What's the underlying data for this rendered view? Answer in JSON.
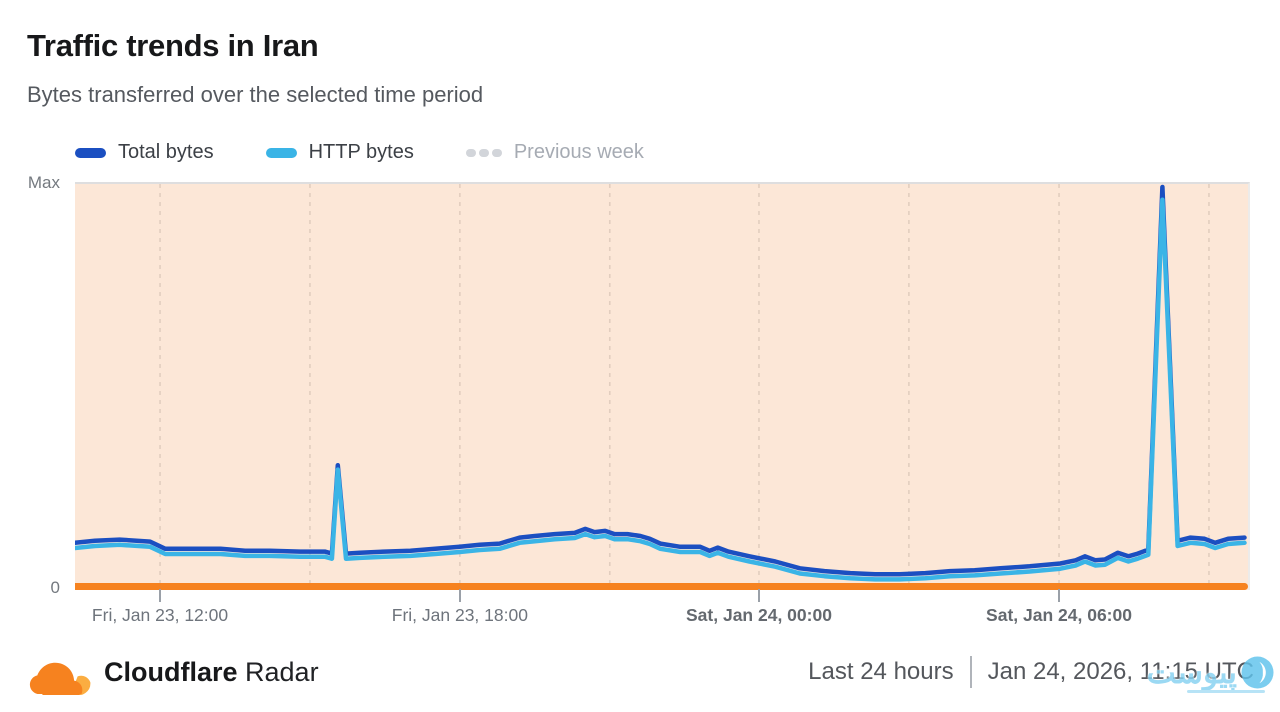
{
  "header": {
    "title": "Traffic trends in Iran",
    "subtitle": "Bytes transferred over the selected time period"
  },
  "legend": [
    {
      "label": "Total bytes",
      "color": "#1b4fc1",
      "style": "solid-pill",
      "active": true
    },
    {
      "label": "HTTP bytes",
      "color": "#3ab4e6",
      "style": "solid-pill",
      "active": true
    },
    {
      "label": "Previous week",
      "color": "#d2d5da",
      "style": "dashed-pill",
      "active": false
    }
  ],
  "chart_data": {
    "type": "line",
    "title": "Traffic trends in Iran",
    "subtitle": "Bytes transferred over the selected time period",
    "y_axis": {
      "top_label": "Max",
      "bottom_label": "0",
      "unit": "% of max",
      "range": [
        0,
        100
      ],
      "numeric_scale_hidden": true
    },
    "x_unit": "fraction of 24h window (0 ≈ Fri Jan 23 ~11:15 UTC, 1 ≈ Sat Jan 24 ~11:15 UTC)",
    "x_ticks": [
      {
        "x": 0.0725,
        "label": "Fri, Jan 23, 12:00",
        "bold": false
      },
      {
        "x": 0.3281,
        "label": "Fri, Jan 23, 18:00",
        "bold": false
      },
      {
        "x": 0.5831,
        "label": "Sat, Jan 24, 00:00",
        "bold": true
      },
      {
        "x": 0.8389,
        "label": "Sat, Jan 24, 06:00",
        "bold": true
      }
    ],
    "gridlines_x": [
      0.0725,
      0.2003,
      0.3281,
      0.4559,
      0.5831,
      0.7109,
      0.8389,
      0.9667
    ],
    "grid_on": true,
    "legend_position": "top-left",
    "plot_bg": "#fce7d7",
    "baseline_color": "#f6821f",
    "grid_color": "#e2cebf",
    "x": [
      0.0,
      0.017,
      0.038,
      0.064,
      0.077,
      0.098,
      0.124,
      0.145,
      0.166,
      0.192,
      0.213,
      0.219,
      0.224,
      0.231,
      0.243,
      0.264,
      0.286,
      0.307,
      0.328,
      0.345,
      0.362,
      0.379,
      0.392,
      0.409,
      0.426,
      0.435,
      0.443,
      0.452,
      0.46,
      0.471,
      0.482,
      0.49,
      0.499,
      0.516,
      0.533,
      0.541,
      0.548,
      0.557,
      0.575,
      0.597,
      0.618,
      0.639,
      0.661,
      0.682,
      0.703,
      0.725,
      0.746,
      0.767,
      0.789,
      0.814,
      0.84,
      0.853,
      0.861,
      0.87,
      0.878,
      0.889,
      0.898,
      0.906,
      0.915,
      0.927,
      0.94,
      0.951,
      0.963,
      0.972,
      0.983,
      0.997
    ],
    "series": [
      {
        "name": "Total bytes",
        "color": "#1b4fc1",
        "unit": "% of max",
        "values": [
          10.6,
          11.1,
          11.4,
          10.9,
          9.1,
          9.1,
          9.1,
          8.6,
          8.6,
          8.4,
          8.4,
          7.9,
          30.1,
          7.9,
          8.1,
          8.4,
          8.6,
          9.1,
          9.6,
          10.1,
          10.4,
          11.9,
          12.3,
          12.8,
          13.1,
          14.1,
          13.3,
          13.6,
          12.8,
          12.8,
          12.3,
          11.6,
          10.4,
          9.6,
          9.6,
          8.6,
          9.4,
          8.4,
          7.2,
          5.9,
          4.2,
          3.5,
          3.0,
          2.7,
          2.7,
          3.0,
          3.5,
          3.7,
          4.2,
          4.7,
          5.4,
          6.2,
          7.2,
          6.2,
          6.4,
          8.1,
          7.2,
          7.9,
          8.9,
          100.0,
          11.1,
          11.9,
          11.6,
          10.6,
          11.6,
          11.9
        ]
      },
      {
        "name": "HTTP bytes",
        "color": "#3ab4e6",
        "unit": "% of max",
        "values": [
          9.3,
          9.8,
          10.1,
          9.6,
          7.8,
          7.8,
          7.8,
          7.3,
          7.3,
          7.1,
          7.1,
          6.6,
          29.0,
          6.6,
          6.8,
          7.1,
          7.3,
          7.8,
          8.3,
          8.8,
          9.1,
          10.6,
          11.0,
          11.5,
          11.8,
          12.8,
          12.0,
          12.3,
          11.5,
          11.5,
          11.0,
          10.3,
          9.1,
          8.3,
          8.3,
          7.3,
          8.1,
          7.1,
          5.9,
          4.6,
          2.9,
          2.2,
          1.7,
          1.4,
          1.4,
          1.7,
          2.2,
          2.4,
          2.9,
          3.4,
          4.1,
          4.9,
          5.9,
          4.9,
          5.1,
          6.8,
          5.9,
          6.6,
          7.6,
          96.8,
          9.8,
          10.6,
          10.3,
          9.3,
          10.3,
          10.6
        ]
      },
      {
        "name": "Previous week",
        "color": "#d2d5da",
        "unit": "% of max",
        "values": [],
        "note": "legend entry greyed out; series not drawn in chart"
      }
    ],
    "annotations": [
      "Small spike to ~30% of max around Fri Jan 23 ~15:40 UTC",
      "Large spike reaching Max around Sat Jan 24 ~08:05 UTC"
    ]
  },
  "footer": {
    "brand_bold": "Cloudflare",
    "brand_regular": "Radar",
    "range_label": "Last 24 hours",
    "timestamp": "Jan 24, 2026, 11:15 UTC",
    "logo_colors": {
      "main": "#f6821f",
      "light": "#fbad41"
    }
  },
  "watermark": {
    "text": "پیوست",
    "color": "#86d1f1"
  }
}
